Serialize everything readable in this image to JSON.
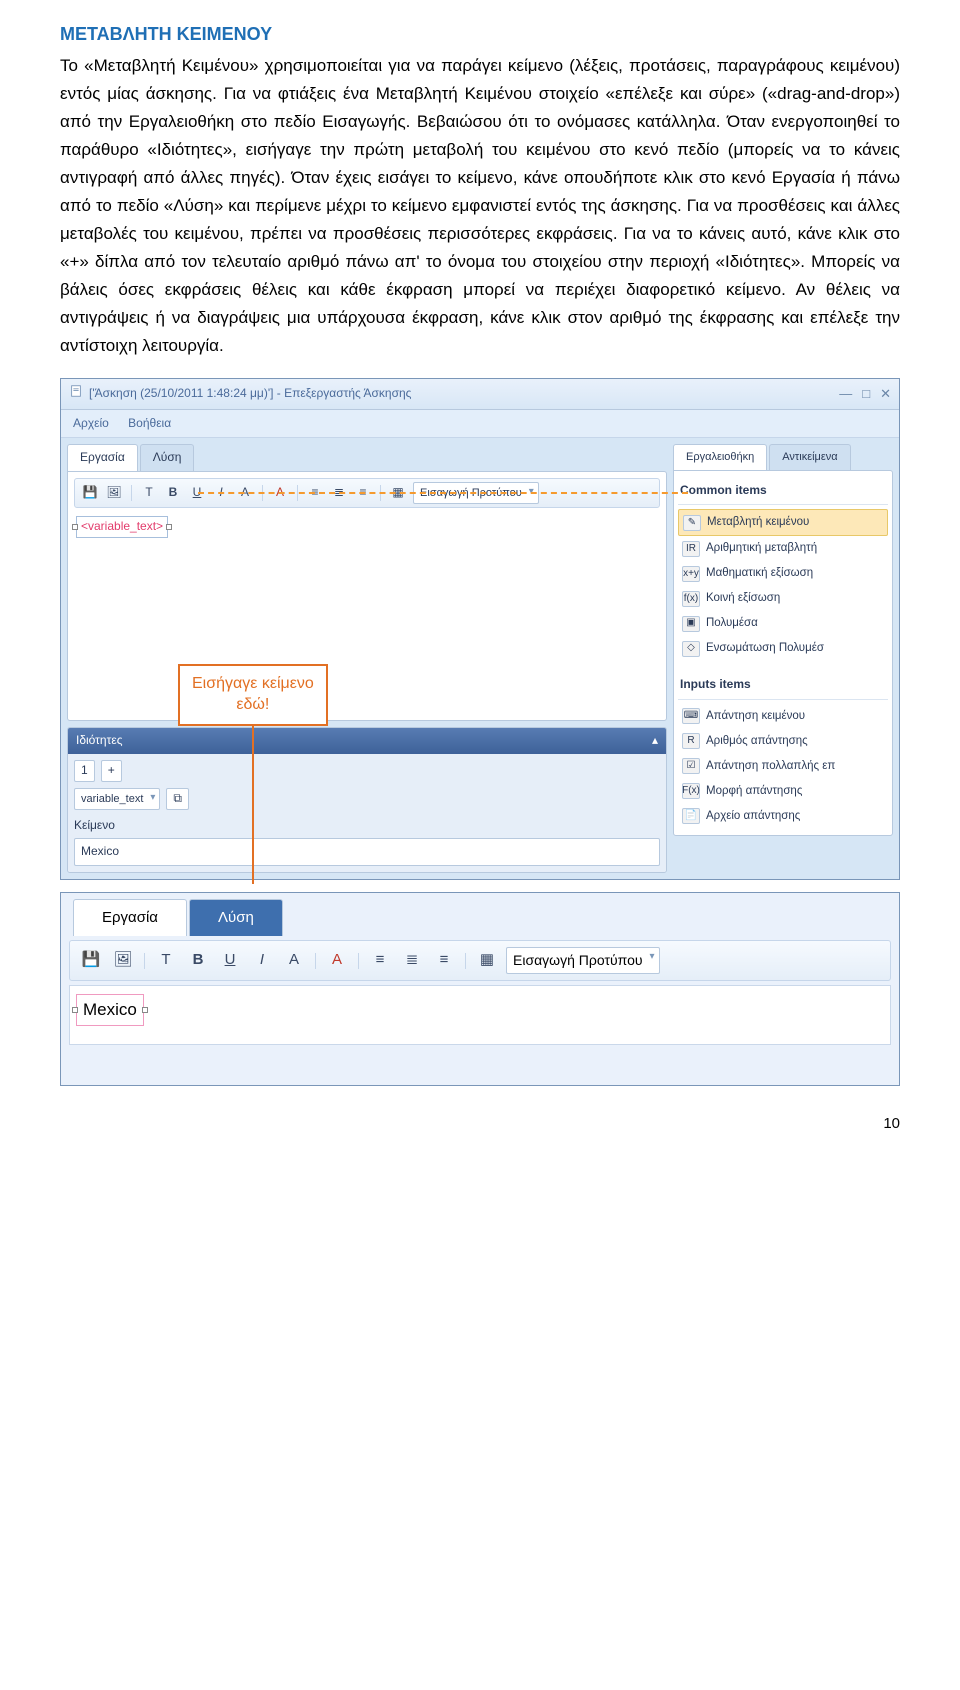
{
  "doc": {
    "heading": "ΜΕΤΑΒΛΗΤΗ ΚΕΙΜΕΝΟΥ",
    "paragraph": "Το «Μεταβλητή Κειμένου» χρησιμοποιείται για να παράγει κείμενο (λέξεις, προτάσεις, παραγράφους κειμένου) εντός μίας άσκησης. Για να φτιάξεις ένα Μεταβλητή Κειμένου στοιχείο «επέλεξε και σύρε» («drag-and-drop») από την Εργαλειοθήκη στο πεδίο Εισαγωγής. Βεβαιώσου ότι το ονόμασες κατάλληλα. Όταν ενεργοποιηθεί το παράθυρο «Ιδιότητες», εισήγαγε την πρώτη μεταβολή του κειμένου στο κενό πεδίο (μπορείς να το κάνεις αντιγραφή από άλλες πηγές). Όταν έχεις εισάγει το κείμενο, κάνε οπουδήποτε κλικ στο κενό Εργασία ή πάνω από το πεδίο «Λύση» και περίμενε μέχρι το κείμενο εμφανιστεί εντός της άσκησης. Για να προσθέσεις και άλλες μεταβολές του κειμένου, πρέπει να προσθέσεις περισσότερες εκφράσεις. Για να το κάνεις αυτό, κάνε κλικ στο «+» δίπλα από τον τελευταίο αριθμό πάνω απ' το όνομα του στοιχείου στην περιοχή «Ιδιότητες». Μπορείς να βάλεις όσες εκφράσεις θέλεις και κάθε έκφραση μπορεί να περιέχει διαφορετικό κείμενο. Αν θέλεις να αντιγράψεις ή να διαγράψεις μια υπάρχουσα έκφραση, κάνε κλικ στον αριθμό της έκφρασης και επέλεξε την αντίστοιχη λειτουργία.",
    "page_number": "10"
  },
  "app": {
    "title": "['Άσκηση (25/10/2011 1:48:24 μμ)'] - Επεξεργαστής Άσκησης",
    "menu": {
      "file": "Αρχείο",
      "help": "Βοήθεια"
    },
    "left_tabs": {
      "work": "Εργασία",
      "solution": "Λύση"
    },
    "toolbar": {
      "bold": "B",
      "underline": "U",
      "italic": "I",
      "font_a": "A",
      "font_a2": "A",
      "insert_template": "Εισαγωγή Προτύπου",
      "t_icon": "T"
    },
    "canvas_item": "<variable_text>",
    "callout": {
      "line1": "Εισήγαγε κείμενο",
      "line2": "εδώ!"
    },
    "props": {
      "title": "Ιδιότητες",
      "collapse_icon": "▴",
      "expr_number": "1",
      "plus": "+",
      "var_name": "variable_text",
      "link_icon": "⧉",
      "field_label": "Κείμενο",
      "field_value": "Mexico"
    },
    "right_tabs": {
      "toolbox": "Εργαλειοθήκη",
      "objects": "Αντικείμενα"
    },
    "toolbox": {
      "group1_title": "Common items",
      "common": [
        {
          "icon": "✎",
          "label": "Μεταβλητή κειμένου",
          "hl": true
        },
        {
          "icon": "IR",
          "label": "Αριθμητική μεταβλητή"
        },
        {
          "icon": "x+y",
          "label": "Μαθηματική εξίσωση"
        },
        {
          "icon": "f(x)",
          "label": "Κοινή εξίσωση"
        },
        {
          "icon": "▣",
          "label": "Πολυμέσα"
        },
        {
          "icon": "◇",
          "label": "Ενσωμάτωση Πολυμέσ"
        }
      ],
      "group2_title": "Inputs items",
      "inputs": [
        {
          "icon": "⌨",
          "label": "Απάντηση κειμένου"
        },
        {
          "icon": "R",
          "label": "Αριθμός απάντησης"
        },
        {
          "icon": "☑",
          "label": "Απάντηση πολλαπλής επ"
        },
        {
          "icon": "F(x)",
          "label": "Μορφή απάντησης"
        },
        {
          "icon": "📄",
          "label": "Αρχείο απάντησης"
        }
      ]
    }
  },
  "zoom": {
    "tab_work": "Εργασία",
    "tab_solution": "Λύση",
    "insert_template": "Εισαγωγή Προτύπου",
    "value": "Mexico"
  },
  "colors": {
    "heading": "#1f6fb5",
    "accent_orange": "#e27024",
    "app_chrome": "#d6e6f5",
    "border": "#b7c9de",
    "pink_border": "#f09ac0",
    "dash_orange": "#f59a2e"
  }
}
